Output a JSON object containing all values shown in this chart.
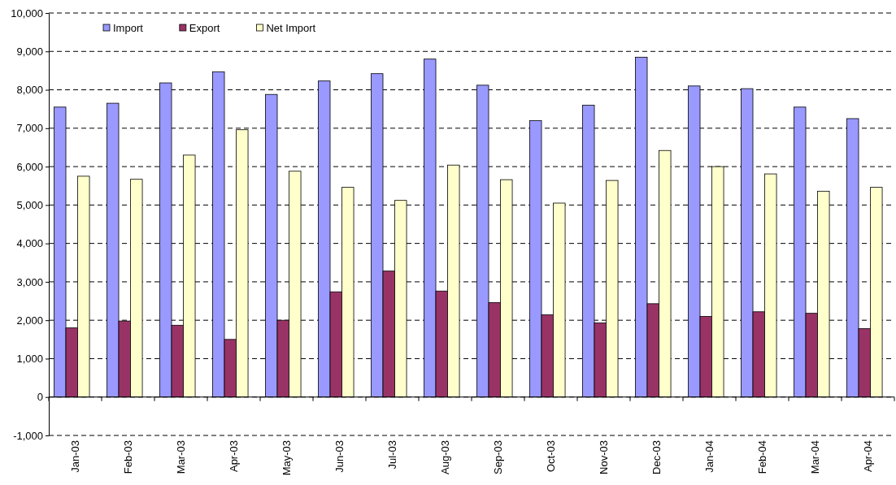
{
  "chart_data": {
    "type": "bar",
    "categories": [
      "Jan-03",
      "Feb-03",
      "Mar-03",
      "Apr-03",
      "May-03",
      "Jun-03",
      "Jul-03",
      "Aug-03",
      "Sep-03",
      "Oct-03",
      "Nov-03",
      "Dec-03",
      "Jan-04",
      "Feb-04",
      "Mar-04",
      "Apr-04"
    ],
    "series": [
      {
        "name": "Import",
        "color": "#9999ff",
        "values": [
          7550,
          7650,
          8180,
          8470,
          7880,
          8230,
          8420,
          8800,
          8120,
          7200,
          7600,
          8850,
          8100,
          8030,
          7550,
          7250
        ]
      },
      {
        "name": "Export",
        "color": "#993366",
        "values": [
          1800,
          1980,
          1870,
          1500,
          2000,
          2740,
          3280,
          2760,
          2460,
          2140,
          1930,
          2430,
          2100,
          2220,
          2180,
          1780
        ]
      },
      {
        "name": "Net Import",
        "color": "#ffffcc",
        "values": [
          5750,
          5670,
          6300,
          6960,
          5880,
          5460,
          5120,
          6040,
          5660,
          5050,
          5640,
          6420,
          6000,
          5810,
          5360,
          5460
        ]
      }
    ],
    "ylim": [
      -1000,
      10000
    ],
    "yticks": [
      {
        "value": -1000,
        "label": "-1,000"
      },
      0,
      {
        "value": 1000,
        "label": "1,000"
      },
      {
        "value": 2000,
        "label": "2,000"
      },
      {
        "value": 3000,
        "label": "3,000"
      },
      {
        "value": 4000,
        "label": "4,000"
      },
      {
        "value": 5000,
        "label": "5,000"
      },
      {
        "value": 6000,
        "label": "6,000"
      },
      {
        "value": 7000,
        "label": "7,000"
      },
      {
        "value": 8000,
        "label": "8,000"
      },
      {
        "value": 9000,
        "label": "9,000"
      },
      {
        "value": 10000,
        "label": "10,000"
      }
    ],
    "grid": "y",
    "legend": "top left"
  }
}
